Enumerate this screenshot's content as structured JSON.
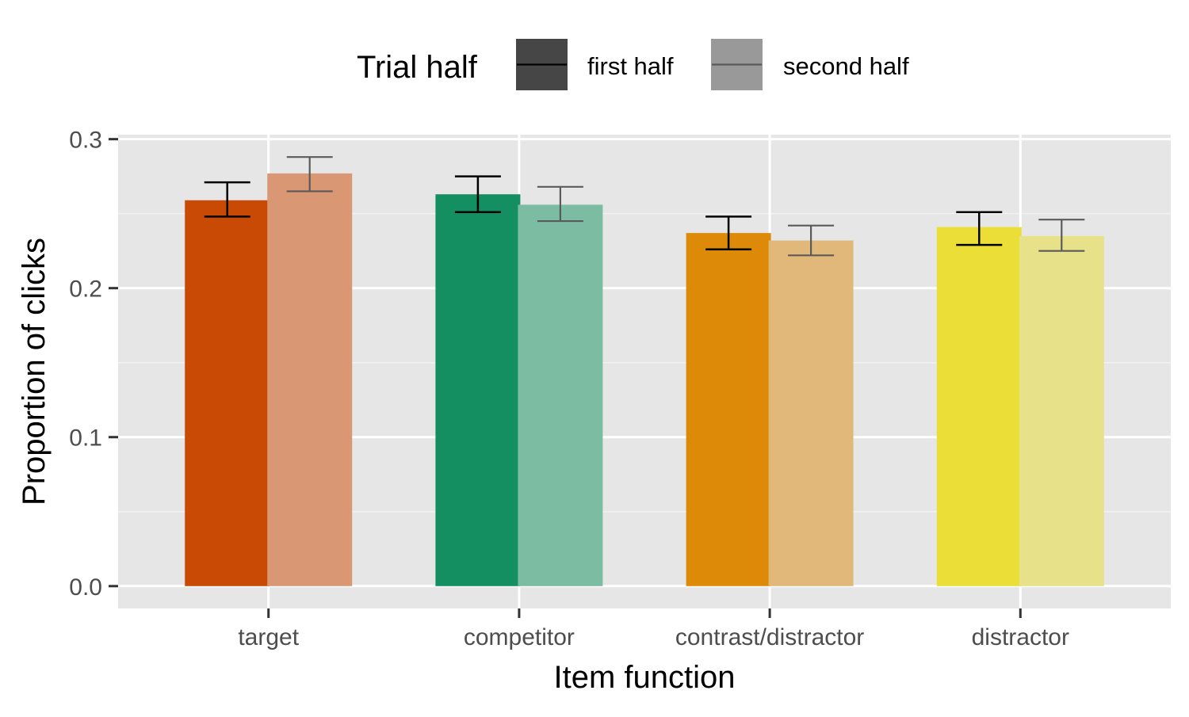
{
  "chart_data": {
    "type": "bar",
    "title": "",
    "xlabel": "Item function",
    "ylabel": "Proportion of clicks",
    "categories": [
      "target",
      "competitor",
      "contrast/distractor",
      "distractor"
    ],
    "ylim": [
      -0.015,
      0.303
    ],
    "yticks": [
      0.0,
      0.1,
      0.2,
      0.3
    ],
    "ytick_labels": [
      "0.0",
      "0.1",
      "0.2",
      "0.3"
    ],
    "grid": true,
    "legend": {
      "title": "Trial half",
      "position": "top",
      "entries": [
        "first half",
        "second half"
      ]
    },
    "category_colors": {
      "first half": [
        "#c94a05",
        "#138f62",
        "#dd8a08",
        "#ebde36"
      ],
      "second half": [
        "#d99773",
        "#7bbca2",
        "#e2b87a",
        "#e7e18a"
      ]
    },
    "series": [
      {
        "name": "first half",
        "values": [
          0.259,
          0.263,
          0.237,
          0.241
        ],
        "error_low": [
          0.248,
          0.251,
          0.226,
          0.229
        ],
        "error_high": [
          0.271,
          0.275,
          0.248,
          0.251
        ]
      },
      {
        "name": "second half",
        "values": [
          0.277,
          0.256,
          0.232,
          0.235
        ],
        "error_low": [
          0.265,
          0.245,
          0.222,
          0.225
        ],
        "error_high": [
          0.288,
          0.268,
          0.242,
          0.246
        ]
      }
    ]
  }
}
